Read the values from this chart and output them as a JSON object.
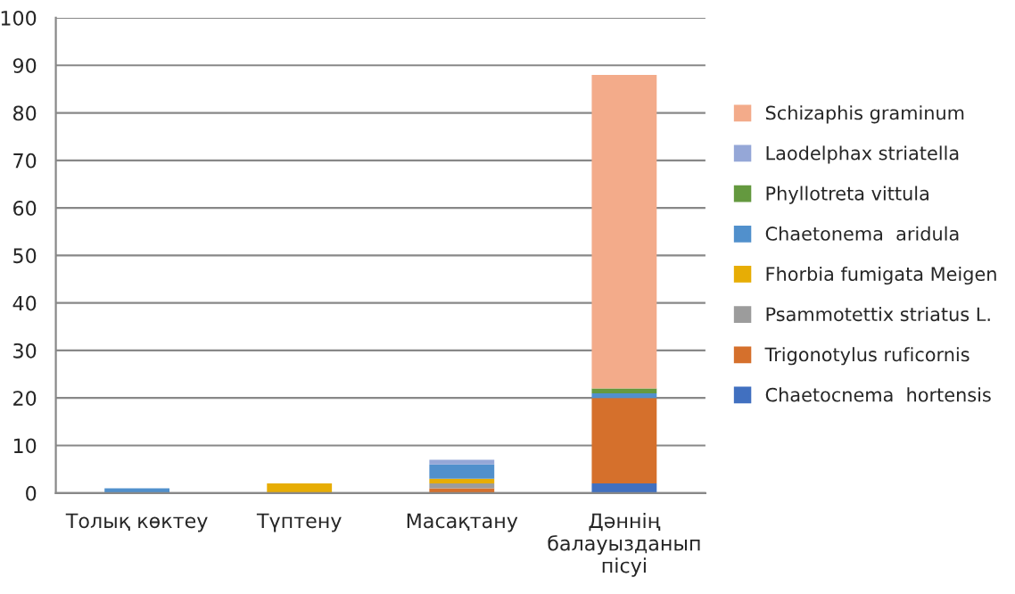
{
  "chart_data": {
    "type": "bar",
    "stacked": true,
    "categories": [
      "Толық көктеу",
      "Түптену",
      "Масақтану",
      "Дәннің\nбалауызданып\nпісуі"
    ],
    "series": [
      {
        "name": "Chaetocnema  hortensis",
        "color": "#4170c0",
        "values": [
          0,
          0,
          0,
          2
        ]
      },
      {
        "name": "Trigonotylus ruficornis",
        "color": "#d5702c",
        "values": [
          0,
          0,
          1,
          18
        ]
      },
      {
        "name": "Psammotettix striatus L.",
        "color": "#9c9c9c",
        "values": [
          0,
          0,
          1,
          0
        ]
      },
      {
        "name": "Fhorbia fumigata Meigen",
        "color": "#e7ad05",
        "values": [
          0,
          2,
          1,
          0
        ]
      },
      {
        "name": "Chaetonema  aridula",
        "color": "#5190cc",
        "values": [
          1,
          0,
          3,
          1
        ]
      },
      {
        "name": "Phyllotreta vittula",
        "color": "#64993f",
        "values": [
          0,
          0,
          0,
          1
        ]
      },
      {
        "name": "Laodelphax striatella",
        "color": "#95a7d7",
        "values": [
          0,
          0,
          1,
          0
        ]
      },
      {
        "name": "Schizaphis graminum",
        "color": "#f3ab8a",
        "values": [
          0,
          0,
          0,
          66
        ]
      }
    ],
    "ylim": [
      0,
      100
    ],
    "yticks": [
      0,
      10,
      20,
      30,
      40,
      50,
      60,
      70,
      80,
      90,
      100
    ],
    "grid": "y",
    "legend": "right"
  }
}
